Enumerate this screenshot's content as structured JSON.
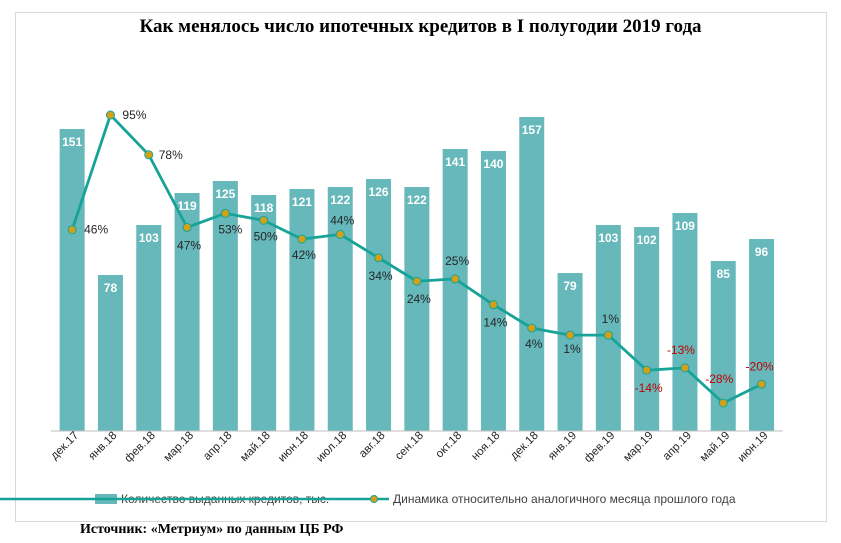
{
  "title": "Как менялось число ипотечных кредитов в I полугодии 2019 года",
  "source": "Источник: «Метриум» по данным ЦБ РФ",
  "colors": {
    "bar": "#66b8bb",
    "line": "#17a398",
    "marker_fill": "#d4a017",
    "negative_label": "#c00000",
    "positive_label": "#262626"
  },
  "chart_data": {
    "type": "bar",
    "categories": [
      "дек.17",
      "янв.18",
      "фев.18",
      "мар.18",
      "апр.18",
      "май.18",
      "июн.18",
      "июл.18",
      "авг.18",
      "сен.18",
      "окт.18",
      "ноя.18",
      "дек.18",
      "янв.19",
      "фев.19",
      "мар.19",
      "апр.19",
      "май.19",
      "июн.19"
    ],
    "series": [
      {
        "name": "Количество выданных кредитов, тыс.",
        "kind": "bar",
        "axis": "left",
        "values": [
          151,
          78,
          103,
          119,
          125,
          118,
          121,
          122,
          126,
          122,
          141,
          140,
          157,
          79,
          103,
          102,
          109,
          85,
          96
        ],
        "labels": [
          "151",
          "78",
          "103",
          "119",
          "125",
          "118",
          "121",
          "122",
          "126",
          "122",
          "141",
          "140",
          "157",
          "79",
          "103",
          "102",
          "109",
          "85",
          "96"
        ]
      },
      {
        "name": "Динамика относительно аналогичного месяца прошлого года",
        "kind": "line",
        "axis": "right",
        "values": [
          46,
          95,
          78,
          47,
          53,
          50,
          42,
          44,
          34,
          24,
          25,
          14,
          4,
          1,
          1,
          -14,
          -13,
          -28,
          -20
        ],
        "labels": [
          "46%",
          "95%",
          "78%",
          "47%",
          "53%",
          "50%",
          "42%",
          "44%",
          "34%",
          "24%",
          "25%",
          "14%",
          "4%",
          "1%",
          "1%",
          "-14%",
          "-13%",
          "-28%",
          "-20%"
        ]
      }
    ],
    "ylim_left": [
      0,
      160
    ],
    "ylim_right": [
      -35,
      105
    ],
    "grid": false,
    "legend": "bottom"
  }
}
